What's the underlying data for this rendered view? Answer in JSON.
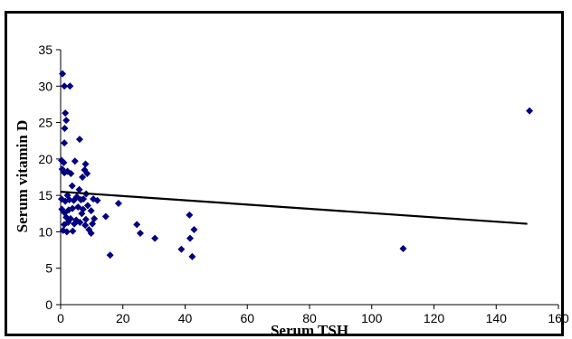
{
  "chart_data": {
    "type": "scatter",
    "title": "",
    "xlabel": "Serum TSH",
    "ylabel": "Serum  vitamin D",
    "xlim": [
      0,
      160
    ],
    "ylim": [
      0,
      35
    ],
    "xticks": [
      0,
      20,
      40,
      60,
      80,
      100,
      120,
      140,
      160
    ],
    "yticks": [
      0,
      5,
      10,
      15,
      20,
      25,
      30,
      35
    ],
    "grid": false,
    "legend": "none",
    "marker_color": "#000080",
    "line_color": "#000000",
    "points": [
      {
        "x": 0.6,
        "y": 31.7
      },
      {
        "x": 1.2,
        "y": 30.0
      },
      {
        "x": 3.0,
        "y": 30.0
      },
      {
        "x": 1.5,
        "y": 26.3
      },
      {
        "x": 1.8,
        "y": 25.3
      },
      {
        "x": 1.3,
        "y": 24.2
      },
      {
        "x": 1.2,
        "y": 22.2
      },
      {
        "x": 6.1,
        "y": 22.7
      },
      {
        "x": 0.3,
        "y": 19.8
      },
      {
        "x": 1.0,
        "y": 19.5
      },
      {
        "x": 0.5,
        "y": 18.6
      },
      {
        "x": 1.2,
        "y": 18.1
      },
      {
        "x": 2.2,
        "y": 18.3
      },
      {
        "x": 3.3,
        "y": 18.0
      },
      {
        "x": 4.6,
        "y": 19.7
      },
      {
        "x": 8.0,
        "y": 19.3
      },
      {
        "x": 7.7,
        "y": 18.5
      },
      {
        "x": 8.5,
        "y": 18.0
      },
      {
        "x": 7.0,
        "y": 17.5
      },
      {
        "x": 3.7,
        "y": 16.3
      },
      {
        "x": 6.0,
        "y": 15.8
      },
      {
        "x": 8.2,
        "y": 15.2
      },
      {
        "x": 0.3,
        "y": 14.5
      },
      {
        "x": 1.5,
        "y": 14.2
      },
      {
        "x": 2.2,
        "y": 15.0
      },
      {
        "x": 2.8,
        "y": 14.4
      },
      {
        "x": 4.2,
        "y": 14.3
      },
      {
        "x": 5.2,
        "y": 14.8
      },
      {
        "x": 6.5,
        "y": 14.4
      },
      {
        "x": 7.3,
        "y": 14.5
      },
      {
        "x": 10.5,
        "y": 14.5
      },
      {
        "x": 11.8,
        "y": 14.3
      },
      {
        "x": 0.4,
        "y": 13.1
      },
      {
        "x": 1.3,
        "y": 12.6
      },
      {
        "x": 2.6,
        "y": 13.0
      },
      {
        "x": 3.8,
        "y": 13.2
      },
      {
        "x": 5.6,
        "y": 13.4
      },
      {
        "x": 7.2,
        "y": 13.1
      },
      {
        "x": 8.7,
        "y": 13.6
      },
      {
        "x": 9.8,
        "y": 12.9
      },
      {
        "x": 6.8,
        "y": 12.5
      },
      {
        "x": 1.8,
        "y": 12.0
      },
      {
        "x": 3.2,
        "y": 11.8
      },
      {
        "x": 5.0,
        "y": 11.6
      },
      {
        "x": 8.1,
        "y": 11.7
      },
      {
        "x": 10.8,
        "y": 11.8
      },
      {
        "x": 14.5,
        "y": 12.1
      },
      {
        "x": 1.2,
        "y": 11.0
      },
      {
        "x": 2.4,
        "y": 11.3
      },
      {
        "x": 4.4,
        "y": 11.1
      },
      {
        "x": 6.2,
        "y": 11.3
      },
      {
        "x": 7.9,
        "y": 10.9
      },
      {
        "x": 10.2,
        "y": 11.1
      },
      {
        "x": 0.8,
        "y": 10.2
      },
      {
        "x": 2.0,
        "y": 10.0
      },
      {
        "x": 3.9,
        "y": 10.1
      },
      {
        "x": 9.1,
        "y": 10.3
      },
      {
        "x": 9.8,
        "y": 9.8
      },
      {
        "x": 18.6,
        "y": 13.9
      },
      {
        "x": 24.5,
        "y": 11.0
      },
      {
        "x": 25.6,
        "y": 9.8
      },
      {
        "x": 30.3,
        "y": 9.1
      },
      {
        "x": 15.9,
        "y": 6.8
      },
      {
        "x": 38.8,
        "y": 7.6
      },
      {
        "x": 41.4,
        "y": 12.3
      },
      {
        "x": 41.6,
        "y": 9.1
      },
      {
        "x": 42.9,
        "y": 10.3
      },
      {
        "x": 42.3,
        "y": 6.6
      },
      {
        "x": 110.1,
        "y": 7.7
      },
      {
        "x": 150.7,
        "y": 26.6
      }
    ],
    "trendline": {
      "x": [
        0,
        150
      ],
      "y": [
        15.5,
        11.1
      ]
    }
  }
}
